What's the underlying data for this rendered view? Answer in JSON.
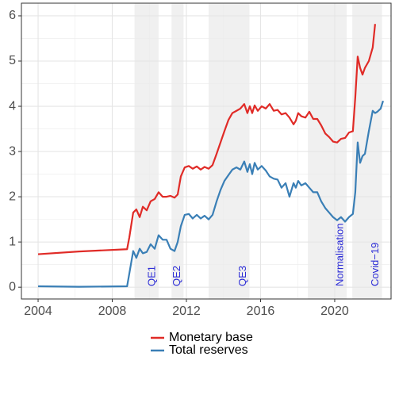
{
  "chart_data": {
    "type": "line",
    "x": [
      2004,
      2006.2,
      2008.8,
      2008.92,
      2009.13,
      2009.3,
      2009.48,
      2009.65,
      2009.86,
      2010.07,
      2010.29,
      2010.5,
      2010.72,
      2010.93,
      2011.14,
      2011.36,
      2011.53,
      2011.7,
      2011.91,
      2012.13,
      2012.34,
      2012.56,
      2012.77,
      2012.98,
      2013.2,
      2013.41,
      2013.63,
      2013.84,
      2014.05,
      2014.27,
      2014.48,
      2014.7,
      2014.91,
      2015.12,
      2015.29,
      2015.42,
      2015.55,
      2015.68,
      2015.85,
      2016.06,
      2016.28,
      2016.49,
      2016.71,
      2016.92,
      2017.13,
      2017.35,
      2017.56,
      2017.78,
      2017.9,
      2018.03,
      2018.2,
      2018.42,
      2018.63,
      2018.84,
      2019.06,
      2019.27,
      2019.49,
      2019.7,
      2019.91,
      2020.13,
      2020.34,
      2020.56,
      2020.77,
      2020.98,
      2021.11,
      2021.24,
      2021.37,
      2021.5,
      2021.63,
      2021.84,
      2022.05,
      2022.18,
      2022.3,
      2022.48,
      2022.61
    ],
    "series": [
      {
        "name": "Monetary base",
        "color": "#e02b27",
        "values": [
          0.73,
          0.79,
          0.84,
          1.1,
          1.65,
          1.72,
          1.55,
          1.78,
          1.7,
          1.9,
          1.95,
          2.1,
          2.0,
          2.0,
          2.02,
          1.98,
          2.05,
          2.45,
          2.65,
          2.68,
          2.62,
          2.67,
          2.6,
          2.66,
          2.62,
          2.7,
          2.95,
          3.2,
          3.45,
          3.7,
          3.85,
          3.9,
          3.95,
          4.05,
          3.85,
          4.0,
          3.85,
          4.02,
          3.9,
          4.0,
          3.95,
          4.05,
          3.9,
          3.92,
          3.82,
          3.85,
          3.75,
          3.6,
          3.68,
          3.85,
          3.78,
          3.75,
          3.88,
          3.72,
          3.72,
          3.58,
          3.4,
          3.32,
          3.22,
          3.2,
          3.28,
          3.3,
          3.42,
          3.45,
          4.2,
          5.1,
          4.85,
          4.7,
          4.85,
          5.0,
          5.3,
          5.82,
          null,
          null,
          null
        ]
      },
      {
        "name": "Total reserves",
        "color": "#3a7fb6",
        "values": [
          0.02,
          0.01,
          0.02,
          0.3,
          0.8,
          0.65,
          0.85,
          0.75,
          0.78,
          0.95,
          0.85,
          1.15,
          1.05,
          1.05,
          0.85,
          0.8,
          1.0,
          1.35,
          1.6,
          1.62,
          1.52,
          1.6,
          1.52,
          1.58,
          1.5,
          1.6,
          1.9,
          2.15,
          2.35,
          2.48,
          2.6,
          2.65,
          2.6,
          2.78,
          2.55,
          2.72,
          2.5,
          2.75,
          2.6,
          2.68,
          2.58,
          2.45,
          2.4,
          2.38,
          2.2,
          2.3,
          2.0,
          2.3,
          2.2,
          2.35,
          2.25,
          2.3,
          2.2,
          2.1,
          2.1,
          1.9,
          1.75,
          1.65,
          1.55,
          1.48,
          1.55,
          1.45,
          1.55,
          1.62,
          2.1,
          3.2,
          2.75,
          2.9,
          2.95,
          3.45,
          3.9,
          3.85,
          3.88,
          3.95,
          4.12
        ]
      }
    ],
    "shaded": [
      {
        "label": "QE1",
        "start": 2009.2,
        "end": 2010.5
      },
      {
        "label": "QE2",
        "start": 2011.2,
        "end": 2011.85
      },
      {
        "label": "QE3",
        "start": 2013.2,
        "end": 2015.4
      },
      {
        "label": "Normalisation",
        "start": 2018.55,
        "end": 2020.65
      },
      {
        "label": "Covid−19",
        "start": 2020.95,
        "end": 2022.55
      }
    ],
    "shade_color": "#ebebeb",
    "annotation_color": "#2b2bd6",
    "xlim": [
      2003.1,
      2023.04
    ],
    "xticks": [
      2004,
      2008,
      2012,
      2016,
      2020
    ],
    "ylim": [
      -0.26,
      6.28
    ],
    "yticks": [
      0,
      1,
      2,
      3,
      4,
      5,
      6
    ],
    "grid": true,
    "legend": "bottom"
  }
}
